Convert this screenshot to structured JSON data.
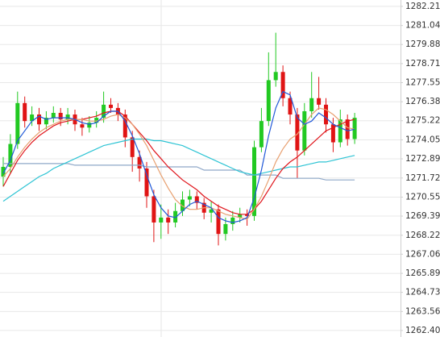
{
  "chart_data": {
    "type": "candlestick",
    "open": [
      1271.8,
      1272.4,
      1273.8,
      1276.3,
      1275.2,
      1275.6,
      1275.0,
      1275.4,
      1275.7,
      1275.3,
      1275.6,
      1275.0,
      1274.8,
      1275.1,
      1275.4,
      1276.2,
      1276.0,
      1275.6,
      1274.2,
      1273.0,
      1272.3,
      1270.6,
      1269.0,
      1269.3,
      1269.0,
      1269.7,
      1270.4,
      1270.6,
      1270.2,
      1269.6,
      1269.8,
      1268.3,
      1268.9,
      1269.3,
      1269.5,
      1269.4,
      1273.6,
      1275.2,
      1277.7,
      1278.2,
      1276.6,
      1275.6,
      1273.4,
      1275.8,
      1276.6,
      1276.2,
      1275.0,
      1273.9,
      1275.3,
      1274.1
    ],
    "high": [
      1273.0,
      1274.4,
      1277.0,
      1276.7,
      1276.1,
      1276.0,
      1275.8,
      1276.1,
      1276.0,
      1276.0,
      1275.9,
      1275.4,
      1275.5,
      1275.8,
      1277.0,
      1276.6,
      1276.3,
      1275.9,
      1274.6,
      1273.4,
      1272.7,
      1271.0,
      1270.1,
      1269.8,
      1270.2,
      1270.9,
      1271.0,
      1270.9,
      1270.5,
      1270.3,
      1270.1,
      1269.3,
      1269.7,
      1269.9,
      1269.8,
      1274.0,
      1276.0,
      1279.4,
      1280.6,
      1278.6,
      1277.0,
      1276.0,
      1276.3,
      1278.2,
      1277.9,
      1276.6,
      1275.4,
      1275.9,
      1275.6,
      1275.7
    ],
    "low": [
      1271.2,
      1272.0,
      1273.5,
      1274.8,
      1274.9,
      1274.6,
      1274.7,
      1275.1,
      1274.9,
      1275.0,
      1274.6,
      1274.3,
      1274.5,
      1274.8,
      1275.1,
      1275.7,
      1275.2,
      1273.6,
      1272.1,
      1271.5,
      1269.9,
      1267.8,
      1268.0,
      1268.3,
      1268.7,
      1269.4,
      1270.0,
      1269.8,
      1269.2,
      1269.0,
      1267.6,
      1267.9,
      1268.5,
      1269.0,
      1268.8,
      1269.1,
      1273.3,
      1274.9,
      1277.3,
      1276.1,
      1275.0,
      1271.7,
      1273.1,
      1275.4,
      1275.9,
      1274.5,
      1273.3,
      1273.6,
      1273.7,
      1273.8
    ],
    "close": [
      1272.4,
      1273.8,
      1276.3,
      1275.2,
      1275.6,
      1275.0,
      1275.4,
      1275.7,
      1275.3,
      1275.6,
      1275.0,
      1274.8,
      1275.1,
      1275.4,
      1276.2,
      1276.0,
      1275.6,
      1274.2,
      1273.0,
      1272.3,
      1270.6,
      1269.0,
      1269.3,
      1269.0,
      1269.7,
      1270.4,
      1270.6,
      1270.2,
      1269.6,
      1269.8,
      1268.3,
      1268.9,
      1269.3,
      1269.5,
      1269.4,
      1273.6,
      1275.2,
      1277.7,
      1278.2,
      1276.6,
      1275.6,
      1273.4,
      1275.8,
      1276.6,
      1276.2,
      1275.0,
      1273.9,
      1275.3,
      1274.1,
      1275.4
    ],
    "up_color": "#22c922",
    "down_color": "#e01414",
    "series": [
      {
        "color": "#8fa8c8",
        "values": [
          1272.6,
          1272.6,
          1272.6,
          1272.6,
          1272.6,
          1272.6,
          1272.6,
          1272.6,
          1272.6,
          1272.6,
          1272.5,
          1272.5,
          1272.5,
          1272.5,
          1272.5,
          1272.5,
          1272.5,
          1272.5,
          1272.5,
          1272.5,
          1272.4,
          1272.4,
          1272.4,
          1272.4,
          1272.4,
          1272.4,
          1272.4,
          1272.4,
          1272.2,
          1272.2,
          1272.2,
          1272.2,
          1272.2,
          1272.2,
          1271.9,
          1271.9,
          1271.9,
          1271.9,
          1271.9,
          1271.7,
          1271.7,
          1271.7,
          1271.7,
          1271.7,
          1271.7,
          1271.6,
          1271.6,
          1271.6,
          1271.6,
          1271.6
        ]
      },
      {
        "color": "#2ec4d4",
        "values": [
          1270.3,
          1270.6,
          1270.9,
          1271.2,
          1271.5,
          1271.8,
          1272.0,
          1272.3,
          1272.5,
          1272.7,
          1272.9,
          1273.1,
          1273.3,
          1273.5,
          1273.7,
          1273.8,
          1273.9,
          1274.0,
          1274.1,
          1274.1,
          1274.1,
          1274.0,
          1274.0,
          1273.9,
          1273.8,
          1273.7,
          1273.5,
          1273.3,
          1273.1,
          1272.9,
          1272.7,
          1272.5,
          1272.3,
          1272.1,
          1272.0,
          1271.9,
          1272.0,
          1272.1,
          1272.2,
          1272.3,
          1272.4,
          1272.4,
          1272.5,
          1272.6,
          1272.7,
          1272.7,
          1272.8,
          1272.9,
          1273.0,
          1273.1
        ]
      },
      {
        "color": "#e0151b",
        "values": [
          1271.2,
          1272.0,
          1272.8,
          1273.4,
          1273.9,
          1274.3,
          1274.6,
          1274.9,
          1275.1,
          1275.2,
          1275.3,
          1275.3,
          1275.4,
          1275.5,
          1275.7,
          1275.8,
          1275.8,
          1275.5,
          1275.0,
          1274.5,
          1274.0,
          1273.4,
          1272.9,
          1272.4,
          1272.0,
          1271.6,
          1271.3,
          1271.0,
          1270.6,
          1270.3,
          1270.0,
          1269.8,
          1269.6,
          1269.5,
          1269.5,
          1269.8,
          1270.3,
          1271.0,
          1271.7,
          1272.3,
          1272.7,
          1273.0,
          1273.4,
          1273.8,
          1274.2,
          1274.6,
          1274.8,
          1275.0,
          1275.2,
          1275.3
        ]
      },
      {
        "color": "#e8a070",
        "values": [
          1271.8,
          1272.3,
          1273.0,
          1273.6,
          1274.1,
          1274.5,
          1274.8,
          1275.0,
          1275.2,
          1275.3,
          1275.3,
          1275.3,
          1275.2,
          1275.2,
          1275.3,
          1275.5,
          1275.6,
          1275.4,
          1275.0,
          1274.4,
          1273.7,
          1272.8,
          1271.9,
          1271.1,
          1270.4,
          1270.0,
          1269.8,
          1269.8,
          1269.9,
          1269.9,
          1269.7,
          1269.5,
          1269.4,
          1269.3,
          1269.2,
          1269.8,
          1270.6,
          1271.6,
          1272.7,
          1273.5,
          1274.1,
          1274.4,
          1275.0,
          1275.6,
          1276.0,
          1275.9,
          1275.6,
          1275.2,
          1274.8,
          1274.7
        ]
      },
      {
        "color": "#2058d8",
        "values": [
          1272.0,
          1272.8,
          1274.0,
          1274.6,
          1275.2,
          1275.5,
          1275.3,
          1275.4,
          1275.4,
          1275.4,
          1275.3,
          1275.1,
          1275.0,
          1275.1,
          1275.5,
          1275.8,
          1275.8,
          1275.2,
          1274.3,
          1273.2,
          1271.9,
          1270.7,
          1269.9,
          1269.4,
          1269.3,
          1269.7,
          1270.1,
          1270.3,
          1270.1,
          1269.9,
          1269.3,
          1269.1,
          1269.0,
          1269.1,
          1269.3,
          1270.5,
          1272.2,
          1274.3,
          1276.0,
          1277.0,
          1276.8,
          1275.4,
          1275.0,
          1275.2,
          1275.7,
          1275.4,
          1275.0,
          1274.8,
          1274.6,
          1274.7
        ]
      }
    ],
    "ylim": [
      1262.0,
      1282.6
    ],
    "yticks": [
      {
        "value": 1262.4,
        "label": "1262.40"
      },
      1263.56,
      1264.73,
      1265.89,
      1267.06,
      1268.22,
      1269.39,
      1270.55,
      1271.72,
      1272.89,
      1274.05,
      1275.22,
      1276.38,
      1277.55,
      1278.71,
      1279.88,
      1281.04,
      1282.21
    ],
    "grid": true
  }
}
